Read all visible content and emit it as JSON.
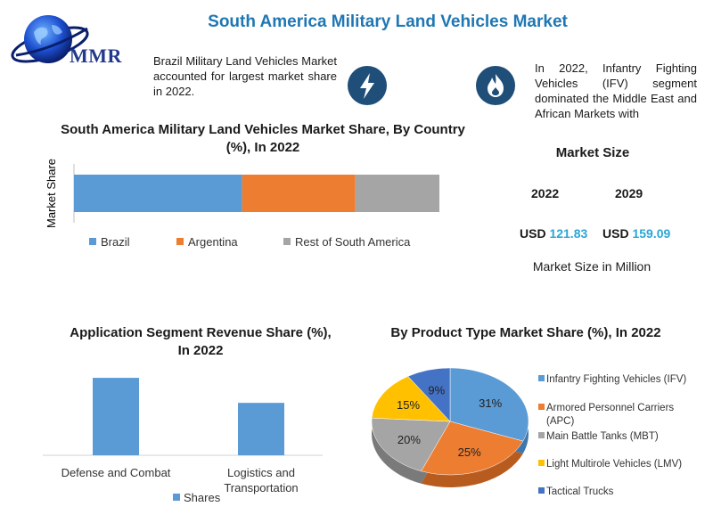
{
  "header": {
    "title": "South America Military Land Vehicles Market",
    "logo_text": "MMR"
  },
  "icons": {
    "bolt": "lightning-bolt-icon",
    "flame": "flame-icon",
    "globe": "globe-icon"
  },
  "colors": {
    "title_blue": "#1f77b4",
    "icon_navy": "#1f4e79",
    "value_cyan": "#2aa6d6"
  },
  "insights": {
    "left": "Brazil Military Land Vehicles Market accounted for largest market share in 2022.",
    "right": "In 2022, Infantry Fighting Vehicles (IFV) segment dominated the Middle East and African Markets with"
  },
  "market_size": {
    "heading": "Market Size",
    "year_1": "2022",
    "year_2": "2029",
    "currency": "USD",
    "value_1": "121.83",
    "value_2": "159.09",
    "unit_note": "Market Size in Million"
  },
  "chart_data": [
    {
      "type": "bar",
      "orientation": "horizontal-stacked",
      "title": "South America Military Land Vehicles Market Share, By Country (%), In 2022",
      "ylabel": "Market Share",
      "categories": [
        ""
      ],
      "series": [
        {
          "name": "Brazil",
          "values": [
            46
          ],
          "color": "#5b9bd5"
        },
        {
          "name": "Argentina",
          "values": [
            31
          ],
          "color": "#ed7d31"
        },
        {
          "name": "Rest of South America",
          "values": [
            23
          ],
          "color": "#a5a5a5"
        }
      ],
      "xlim": [
        0,
        100
      ],
      "legend": "bottom"
    },
    {
      "type": "bar",
      "title": "Application Segment Revenue Share (%), In 2022",
      "categories": [
        "Defense and Combat",
        "Logistics and Transportation"
      ],
      "series": [
        {
          "name": "Shares",
          "values": [
            65,
            44
          ],
          "color": "#5b9bd5"
        }
      ],
      "ylim": [
        0,
        80
      ],
      "legend": "bottom"
    },
    {
      "type": "pie",
      "title": "By Product Type Market Share (%), In 2022",
      "labels": [
        "Infantry Fighting Vehicles (IFV)",
        "Armored Personnel Carriers (APC)",
        "Main Battle Tanks (MBT)",
        "Light Multirole Vehicles (LMV)",
        "Tactical Trucks"
      ],
      "values": [
        31,
        25,
        20,
        15,
        9
      ],
      "value_labels": [
        "31%",
        "25%",
        "20%",
        "15%",
        "9%"
      ],
      "colors": [
        "#5b9bd5",
        "#ed7d31",
        "#a5a5a5",
        "#ffc000",
        "#4472c4"
      ],
      "legend": "right"
    }
  ]
}
